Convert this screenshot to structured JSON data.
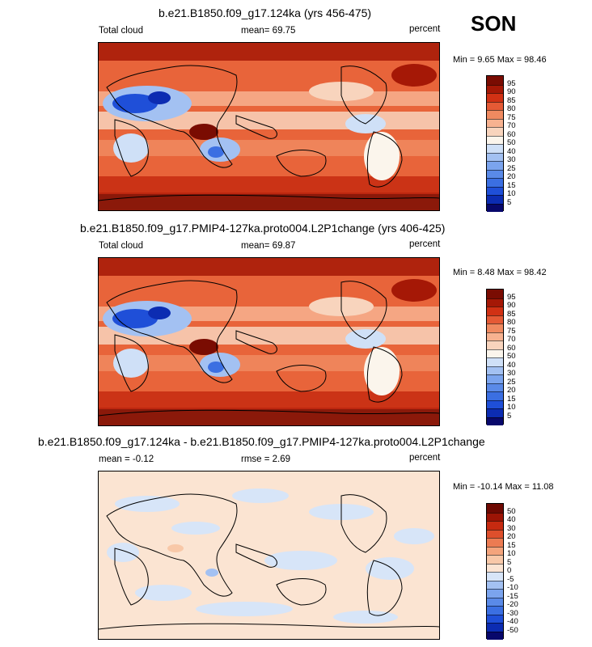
{
  "season": "SON",
  "panels": [
    {
      "title": "b.e21.B1850.f09_g17.124ka (yrs 456-475)",
      "left_label": "Total cloud",
      "center_label": "mean=  69.75",
      "right_label": "percent",
      "minmax": "Min =   9.65 Max =  98.46"
    },
    {
      "title": "b.e21.B1850.f09_g17.PMIP4-127ka.proto004.L2P1change (yrs 406-425)",
      "left_label": "Total cloud",
      "center_label": "mean=  69.87",
      "right_label": "percent",
      "minmax": "Min =   8.48 Max =  98.42"
    },
    {
      "title": "b.e21.B1850.f09_g17.124ka - b.e21.B1850.f09_g17.PMIP4-127ka.proto004.L2P1change",
      "left_label": "mean =  -0.12",
      "center_label": "rmse =   2.69",
      "right_label": "percent",
      "minmax": "Min = -10.14 Max =  11.08"
    }
  ],
  "chart_data": [
    {
      "type": "heatmap",
      "title": "b.e21.B1850.f09_g17.124ka (yrs 456-475)",
      "variable": "Total cloud",
      "units": "percent",
      "mean": 69.75,
      "min": 9.65,
      "max": 98.46,
      "colorbar_levels": [
        5,
        10,
        15,
        20,
        25,
        30,
        40,
        50,
        60,
        70,
        75,
        80,
        85,
        90,
        95
      ],
      "colorbar_colors": [
        "#08086b",
        "#0c2cb2",
        "#1f4fd8",
        "#3b6fe2",
        "#5a8ae8",
        "#7ba4ee",
        "#a3c1f2",
        "#cfe0f7",
        "#fbf5ec",
        "#f8d4bd",
        "#f7b290",
        "#f08a60",
        "#e55a35",
        "#d13114",
        "#a51806",
        "#7a0c02"
      ]
    },
    {
      "type": "heatmap",
      "title": "b.e21.B1850.f09_g17.PMIP4-127ka.proto004.L2P1change (yrs 406-425)",
      "variable": "Total cloud",
      "units": "percent",
      "mean": 69.87,
      "min": 8.48,
      "max": 98.42,
      "colorbar_levels": [
        5,
        10,
        15,
        20,
        25,
        30,
        40,
        50,
        60,
        70,
        75,
        80,
        85,
        90,
        95
      ],
      "colorbar_colors": [
        "#08086b",
        "#0c2cb2",
        "#1f4fd8",
        "#3b6fe2",
        "#5a8ae8",
        "#7ba4ee",
        "#a3c1f2",
        "#cfe0f7",
        "#fbf5ec",
        "#f8d4bd",
        "#f7b290",
        "#f08a60",
        "#e55a35",
        "#d13114",
        "#a51806",
        "#7a0c02"
      ]
    },
    {
      "type": "heatmap",
      "title": "b.e21.B1850.f09_g17.124ka - b.e21.B1850.f09_g17.PMIP4-127ka.proto004.L2P1change",
      "units": "percent",
      "mean": -0.12,
      "rmse": 2.69,
      "min": -10.14,
      "max": 11.08,
      "colorbar_levels": [
        -50,
        -40,
        -30,
        -20,
        -15,
        -10,
        -5,
        0,
        5,
        10,
        15,
        20,
        30,
        40,
        50
      ],
      "colorbar_colors": [
        "#08086b",
        "#0c2cb2",
        "#1f4fd8",
        "#3b6fe2",
        "#5a8ae8",
        "#7ba4ee",
        "#a3c1f2",
        "#d7e5f8",
        "#fbe4d2",
        "#f8c8a8",
        "#f4a47c",
        "#ec7b52",
        "#de4f2c",
        "#c62a10",
        "#9c1405",
        "#6e0902"
      ]
    }
  ]
}
